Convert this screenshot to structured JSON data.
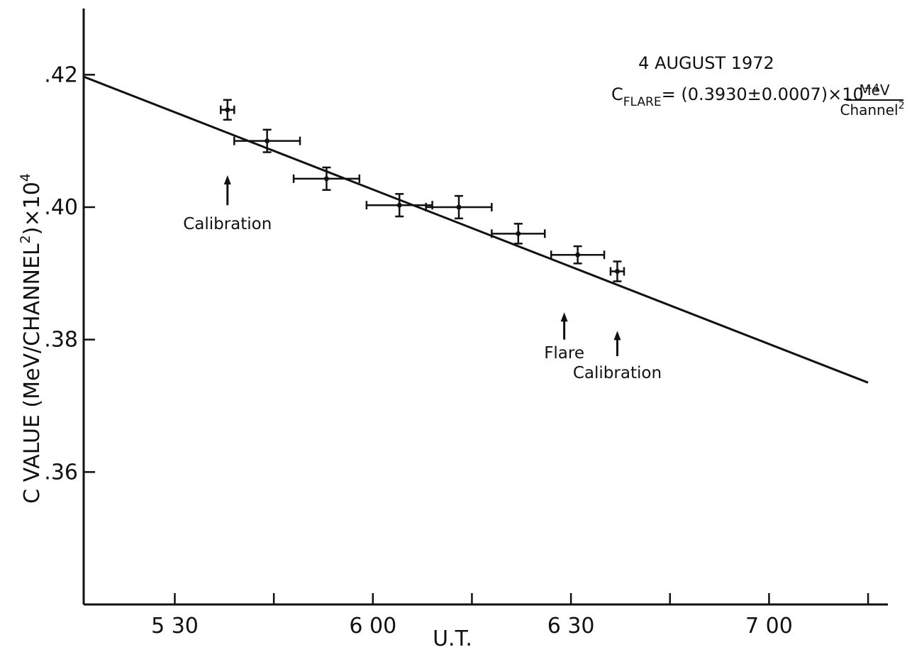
{
  "chart_data": {
    "type": "scatter",
    "title": "4 AUGUST 1972",
    "formula": {
      "lhs_main": "C",
      "lhs_sub": "FLARE",
      "rhs": "= (0.3930±0.0007)×10",
      "exponent": "−4",
      "unit_numerator": "MeV",
      "unit_denominator": "Channel",
      "unit_denominator_power": "2"
    },
    "xlabel": "U.T.",
    "ylabel": {
      "main": "C VALUE (MeV/CHANNEL",
      "sup1": "2",
      "mid": ")×10",
      "sup2": "4"
    },
    "x_ticks": [
      {
        "value": 5.5,
        "label": "5 30"
      },
      {
        "value": 6.0,
        "label": "6 00"
      },
      {
        "value": 6.5,
        "label": "6 30"
      },
      {
        "value": 7.0,
        "label": "7 00"
      }
    ],
    "minor_x_ticks": [
      5.5,
      5.75,
      6.0,
      6.25,
      6.5,
      6.75,
      7.0,
      7.25
    ],
    "y_ticks": [
      {
        "value": 0.42,
        "label": ".42"
      },
      {
        "value": 0.4,
        "label": ".40"
      },
      {
        "value": 0.38,
        "label": ".38"
      },
      {
        "value": 0.36,
        "label": ".36"
      }
    ],
    "xlim": [
      5.27,
      7.3
    ],
    "ylim": [
      0.34,
      0.43
    ],
    "points": [
      {
        "x": 5.633,
        "y": 0.4147,
        "xerr": 0.017,
        "yerr": 0.0015
      },
      {
        "x": 5.733,
        "y": 0.41,
        "xerr": 0.083,
        "yerr": 0.0017
      },
      {
        "x": 5.883,
        "y": 0.4043,
        "xerr": 0.083,
        "yerr": 0.0017
      },
      {
        "x": 6.067,
        "y": 0.4003,
        "xerr": 0.083,
        "yerr": 0.0017
      },
      {
        "x": 6.217,
        "y": 0.4,
        "xerr": 0.083,
        "yerr": 0.0017
      },
      {
        "x": 6.367,
        "y": 0.396,
        "xerr": 0.067,
        "yerr": 0.0015
      },
      {
        "x": 6.517,
        "y": 0.3928,
        "xerr": 0.067,
        "yerr": 0.0013
      },
      {
        "x": 6.617,
        "y": 0.3903,
        "xerr": 0.017,
        "yerr": 0.0015
      }
    ],
    "fit_line": {
      "x": [
        5.27,
        7.25
      ],
      "y": [
        0.4197,
        0.3735
      ]
    },
    "annotations": [
      {
        "text": "Calibration",
        "x": 5.633,
        "arrow_tip_y": 0.4045,
        "arrow_tail_y": 0.4003,
        "text_y": 0.3967
      },
      {
        "text": "Flare",
        "x": 6.483,
        "arrow_tip_y": 0.3838,
        "arrow_tail_y": 0.38,
        "text_y": 0.3772
      },
      {
        "text": "Calibration",
        "x": 6.617,
        "arrow_tip_y": 0.381,
        "arrow_tail_y": 0.3775,
        "text_y": 0.3742
      }
    ]
  }
}
